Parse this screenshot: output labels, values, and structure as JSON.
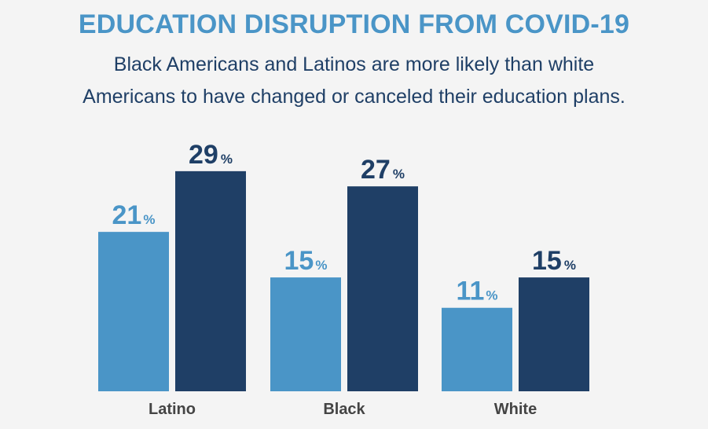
{
  "chart_data": {
    "type": "bar",
    "title": "EDUCATION DISRUPTION FROM COVID-19",
    "subtitle_lines": [
      "Black Americans and Latinos are more likely than white",
      "Americans to have changed or canceled their education plans."
    ],
    "categories": [
      "Latino",
      "Black",
      "White"
    ],
    "series": [
      {
        "values": [
          21,
          15,
          11
        ],
        "color": "#4a95c7"
      },
      {
        "values": [
          29,
          27,
          15
        ],
        "color": "#1f3f66"
      }
    ],
    "value_suffix": "%",
    "ylim": [
      0,
      30
    ],
    "grid": false,
    "legend": "none"
  }
}
